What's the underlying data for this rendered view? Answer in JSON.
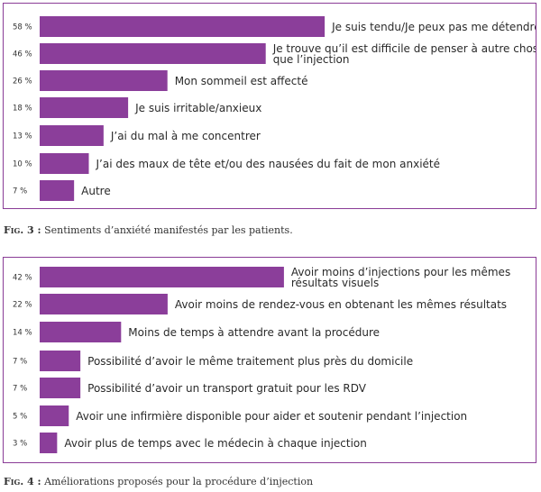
{
  "theme": {
    "bar_color": "#8b3e9a",
    "border_color": "#8a3c96"
  },
  "chart_data": [
    {
      "type": "bar",
      "orientation": "horizontal",
      "categories": [
        "Je suis tendu/Je peux pas me détendre",
        "Je trouve qu’il est difficile de penser à autre chose que l’injection",
        "Mon sommeil est affecté",
        "Je suis irritable/anxieux",
        "J’ai du mal à me concentrer",
        "J’ai des maux de tête et/ou des nausées du fait de mon anxiété",
        "Autre"
      ],
      "category_lines": [
        [
          "Je suis tendu/Je peux pas me détendre"
        ],
        [
          "Je trouve qu’il est difficile de penser à autre chose",
          "que l’injection"
        ],
        [
          "Mon sommeil est affecté"
        ],
        [
          "Je suis irritable/anxieux"
        ],
        [
          "J’ai du mal à me concentrer"
        ],
        [
          "J’ai des maux de tête et/ou des nausées du fait de mon anxiété"
        ],
        [
          "Autre"
        ]
      ],
      "values": [
        58,
        46,
        26,
        18,
        13,
        10,
        7
      ],
      "value_labels": [
        "58 %",
        "46 %",
        "26 %",
        "18 %",
        "13 %",
        "10 %",
        "7 %"
      ],
      "unit": "%",
      "xlim": [
        0,
        100
      ],
      "grid": false
    },
    {
      "type": "bar",
      "orientation": "horizontal",
      "categories": [
        "Avoir moins d’injections pour les mêmes résultats visuels",
        "Avoir moins de rendez-vous en obtenant les mêmes résultats",
        "Moins de temps à attendre avant la procédure",
        "Possibilité d’avoir le même traitement plus près du domicile",
        "Possibilité d’avoir un transport gratuit pour les RDV",
        "Avoir une infirmière disponible pour aider et soutenir pendant l’injection",
        "Avoir plus de temps avec le médecin à chaque injection"
      ],
      "category_lines": [
        [
          "Avoir moins d’injections pour les mêmes",
          "résultats visuels"
        ],
        [
          "Avoir moins de rendez-vous en obtenant les mêmes résultats"
        ],
        [
          "Moins de temps à attendre avant la procédure"
        ],
        [
          "Possibilité d’avoir le même traitement plus près du domicile"
        ],
        [
          "Possibilité d’avoir un transport gratuit pour les RDV"
        ],
        [
          "Avoir une infirmière disponible pour aider et soutenir pendant l’injection"
        ],
        [
          "Avoir plus de temps avec le médecin à chaque injection"
        ]
      ],
      "values": [
        42,
        22,
        14,
        7,
        7,
        5,
        3
      ],
      "value_labels": [
        "42 %",
        "22 %",
        "14 %",
        "7 %",
        "7 %",
        "5 %",
        "3 %"
      ],
      "unit": "%",
      "xlim": [
        0,
        100
      ],
      "grid": false
    }
  ],
  "captions": [
    {
      "label": "Fig. 3 :",
      "text": "Sentiments d’anxiété manifestés par les patients."
    },
    {
      "label": "Fig. 4 :",
      "text": "Améliorations proposés pour la procédure d’injection"
    }
  ]
}
